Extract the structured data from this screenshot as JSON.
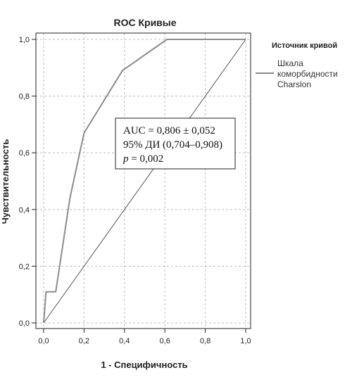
{
  "chart_data": {
    "type": "line",
    "title": "ROC Кривые",
    "xlabel": "1 - Специфичность",
    "ylabel": "Чувствительность",
    "xlim": [
      0,
      1
    ],
    "ylim": [
      0,
      1
    ],
    "x_ticks": [
      "0,0",
      "0,2",
      "0,4",
      "0,6",
      "0,8",
      "1,0"
    ],
    "y_ticks": [
      "0,0",
      "0,2",
      "0,4",
      "0,6",
      "0,8",
      "1,0"
    ],
    "grid": true,
    "legend": {
      "title": "Источник кривой",
      "placement": "right",
      "entries": [
        "Шкала",
        "коморбидности",
        "Charslon"
      ]
    },
    "series": [
      {
        "name": "Шкала коморбидности Charslon",
        "color": "#8c8c8c",
        "x": [
          0.0,
          0.0,
          0.012,
          0.012,
          0.06,
          0.06,
          0.13,
          0.2,
          0.2,
          0.39,
          0.61,
          1.0
        ],
        "y": [
          0.0,
          0.0,
          0.11,
          0.11,
          0.11,
          0.11,
          0.44,
          0.67,
          0.67,
          0.89,
          1.0,
          1.0
        ]
      },
      {
        "name": "",
        "color": "#555555",
        "x": [
          0.0,
          1.0
        ],
        "y": [
          0.0,
          1.0
        ]
      }
    ],
    "annotation": {
      "line1": "AUC = 0,806 ± 0,052",
      "line2": "95% ДИ (0,704–0,908)",
      "line3_italic": "p",
      "line3_rest": " = 0,002"
    }
  }
}
